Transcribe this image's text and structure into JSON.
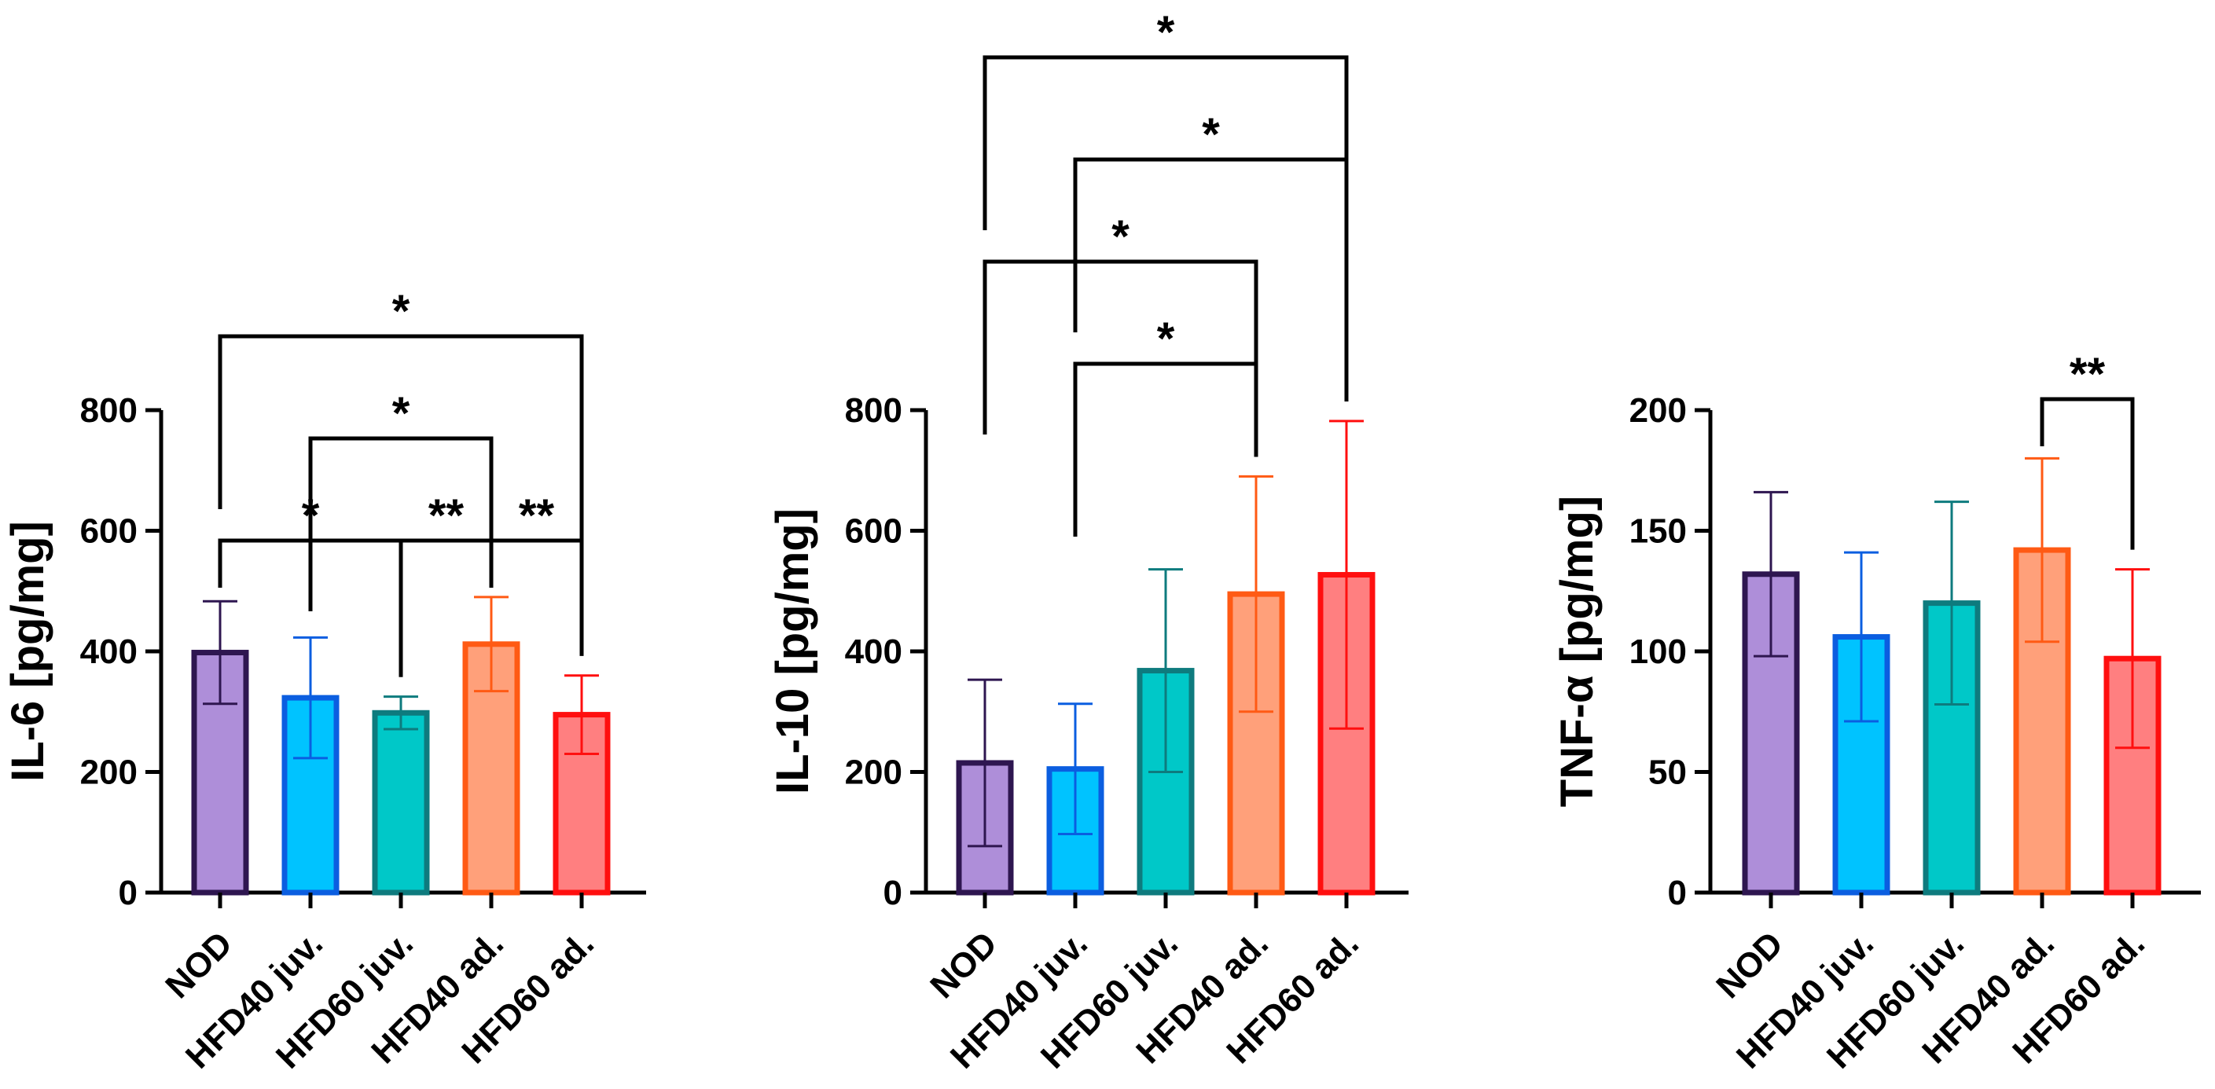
{
  "chart_data": [
    {
      "type": "bar",
      "ylabel": "IL-6 [pg/mg]",
      "ylim": [
        0,
        800
      ],
      "yticks": [
        0,
        200,
        400,
        600,
        800
      ],
      "categories": [
        "NOD",
        "HFD40 juv.",
        "HFD60 juv.",
        "HFD40 ad.",
        "HFD60 ad."
      ],
      "values": [
        398,
        323,
        298,
        412,
        295
      ],
      "errors": [
        85,
        100,
        27,
        78,
        65
      ],
      "grid": false,
      "legend": "none",
      "significance": [
        {
          "from": 0,
          "to": 4,
          "label": "*"
        },
        {
          "from": 1,
          "to": 3,
          "label": "*"
        },
        {
          "from": 0,
          "to": 2,
          "label": "*"
        },
        {
          "from": 2,
          "to": 3,
          "label": "**"
        },
        {
          "from": 3,
          "to": 4,
          "label": "**"
        }
      ]
    },
    {
      "type": "bar",
      "ylabel": "IL-10 [pg/mg]",
      "ylim": [
        0,
        800
      ],
      "yticks": [
        0,
        200,
        400,
        600,
        800
      ],
      "categories": [
        "NOD",
        "HFD40 juv.",
        "HFD60 juv.",
        "HFD40 ad.",
        "HFD60 ad."
      ],
      "values": [
        215,
        205,
        368,
        495,
        527
      ],
      "errors": [
        138,
        108,
        168,
        195,
        255
      ],
      "grid": false,
      "legend": "none",
      "significance": [
        {
          "from": 0,
          "to": 4,
          "label": "*"
        },
        {
          "from": 1,
          "to": 4,
          "label": "*"
        },
        {
          "from": 0,
          "to": 3,
          "label": "*"
        },
        {
          "from": 1,
          "to": 3,
          "label": "*"
        }
      ]
    },
    {
      "type": "bar",
      "ylabel": "TNF-α [pg/mg]",
      "ylim": [
        0,
        200
      ],
      "yticks": [
        0,
        50,
        100,
        150,
        200
      ],
      "categories": [
        "NOD",
        "HFD40 juv.",
        "HFD60 juv.",
        "HFD40 ad.",
        "HFD60 ad."
      ],
      "values": [
        132,
        106,
        120,
        142,
        97
      ],
      "errors": [
        34,
        35,
        42,
        38,
        37
      ],
      "grid": false,
      "legend": "none",
      "significance": [
        {
          "from": 3,
          "to": 4,
          "label": "**"
        }
      ]
    }
  ],
  "colors": {
    "fills": [
      "#ae8ed9",
      "#00c3ff",
      "#00c8c8",
      "#ffa07a",
      "#ff7f80"
    ],
    "borders": [
      "#2e1650",
      "#0b5ee0",
      "#0e7b7e",
      "#ff5a14",
      "#ff0f0f"
    ],
    "axis": "#000000"
  }
}
